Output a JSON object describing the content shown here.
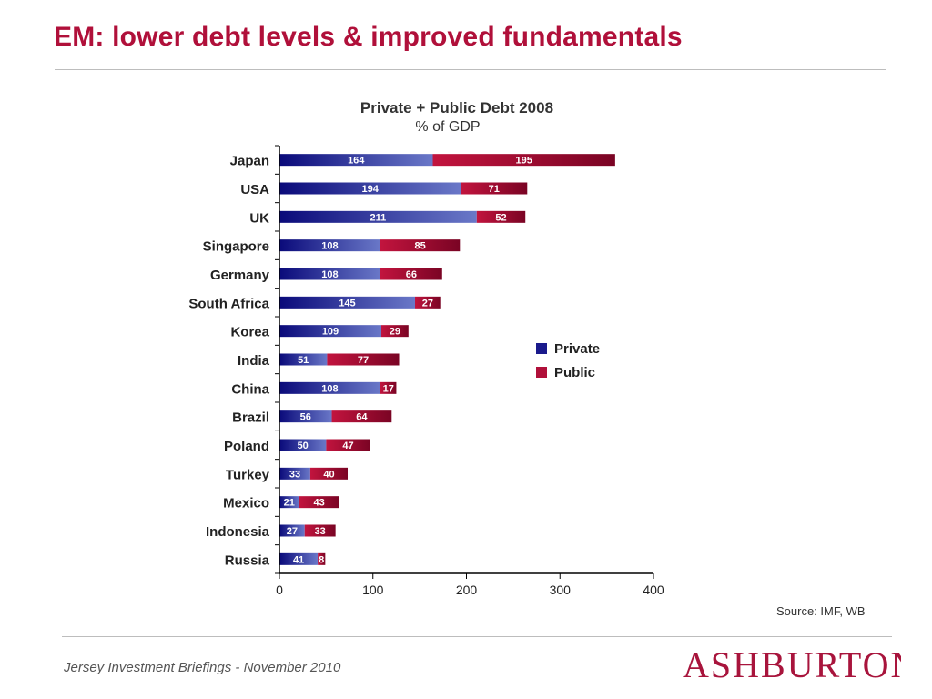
{
  "slide": {
    "title": "EM: lower debt levels & improved fundamentals",
    "source": "Source: IMF, WB",
    "footer": "Jersey Investment Briefings - November 2010",
    "logo": "ASHBURTON"
  },
  "colors": {
    "title": "#b0103a",
    "private": "#1a1a8c",
    "public": "#b0103a",
    "logo": "#a8143c"
  },
  "chart_data": {
    "type": "bar",
    "orientation": "horizontal",
    "stacked": true,
    "title": "Private + Public Debt 2008",
    "subtitle": "% of GDP",
    "categories": [
      "Japan",
      "USA",
      "UK",
      "Singapore",
      "Germany",
      "South Africa",
      "Korea",
      "India",
      "China",
      "Brazil",
      "Poland",
      "Turkey",
      "Mexico",
      "Indonesia",
      "Russia"
    ],
    "series": [
      {
        "name": "Private",
        "values": [
          164,
          194,
          211,
          108,
          108,
          145,
          109,
          51,
          108,
          56,
          50,
          33,
          21,
          27,
          41
        ]
      },
      {
        "name": "Public",
        "values": [
          195,
          71,
          52,
          85,
          66,
          27,
          29,
          77,
          17,
          64,
          47,
          40,
          43,
          33,
          8
        ]
      }
    ],
    "xlim": [
      0,
      400
    ],
    "xticks": [
      0,
      100,
      200,
      300,
      400
    ],
    "grid": false,
    "legend": "right"
  }
}
